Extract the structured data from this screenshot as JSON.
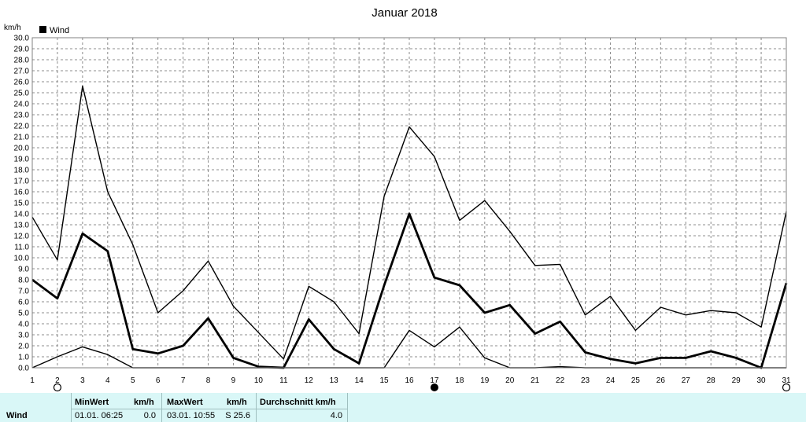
{
  "chart_data": {
    "type": "line",
    "title": "Januar 2018",
    "ylabel": "km/h",
    "ylim": [
      0,
      30
    ],
    "ytick_step": 1,
    "grid": true,
    "legend": {
      "entries": [
        "Wind"
      ],
      "placement": "top-left"
    },
    "x": [
      1,
      2,
      3,
      4,
      5,
      6,
      7,
      8,
      9,
      10,
      11,
      12,
      13,
      14,
      15,
      16,
      17,
      18,
      19,
      20,
      21,
      22,
      23,
      24,
      25,
      26,
      27,
      28,
      29,
      30,
      31
    ],
    "series": [
      {
        "role": "max",
        "values": [
          13.7,
          9.8,
          25.6,
          16.0,
          11.2,
          5.0,
          7.0,
          9.7,
          5.6,
          3.2,
          0.8,
          7.4,
          6.0,
          3.1,
          15.6,
          21.9,
          19.2,
          13.4,
          15.2,
          12.4,
          9.3,
          9.4,
          4.8,
          6.5,
          3.4,
          5.5,
          4.8,
          5.2,
          5.0,
          3.7,
          14.2
        ]
      },
      {
        "role": "mean",
        "values": [
          8.0,
          6.3,
          12.2,
          10.6,
          1.7,
          1.3,
          2.0,
          4.5,
          0.9,
          0.1,
          0.0,
          4.4,
          1.7,
          0.4,
          7.5,
          14.0,
          8.2,
          7.5,
          5.0,
          5.7,
          3.1,
          4.2,
          1.4,
          0.8,
          0.4,
          0.9,
          0.9,
          1.5,
          0.9,
          0.0,
          7.7
        ]
      },
      {
        "role": "min",
        "values": [
          0.0,
          1.0,
          1.9,
          1.2,
          0.0,
          0.0,
          0.0,
          0.0,
          0.0,
          0.0,
          0.0,
          0.0,
          0.0,
          0.0,
          0.0,
          3.4,
          1.9,
          3.7,
          0.9,
          0.0,
          0.0,
          0.1,
          0.0,
          0.0,
          0.0,
          0.0,
          0.0,
          0.0,
          0.0,
          0.0,
          0.0
        ]
      }
    ],
    "moon_phases": [
      {
        "day": 2,
        "phase": "full-moon"
      },
      {
        "day": 17,
        "phase": "new-moon"
      },
      {
        "day": 31,
        "phase": "full-moon"
      }
    ]
  },
  "stats": {
    "row_label": "Wind",
    "min_header": "MinWert",
    "min_unit": "km/h",
    "min_time": "01.01.  06:25",
    "min_value": "0.0",
    "max_header": "MaxWert",
    "max_unit": "km/h",
    "max_time": "03.01.  10:55",
    "max_value": "S 25.6",
    "avg_header": "Durchschnitt km/h",
    "avg_value": "4.0"
  }
}
